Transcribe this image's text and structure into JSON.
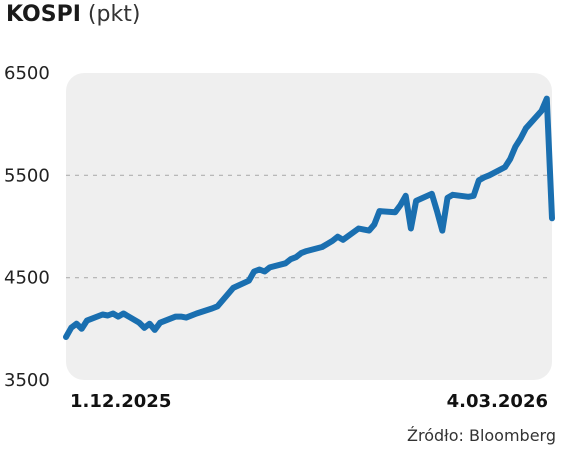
{
  "header": {
    "title": "KOSPI",
    "unit": "(pkt)"
  },
  "source": "Źródło: Bloomberg",
  "colors": {
    "line": "#1a6fb0",
    "plot_background": "#efefef",
    "gridline": "#b0b0b0"
  },
  "chart_data": {
    "type": "line",
    "title": "KOSPI",
    "ylabel": "(pkt)",
    "xlabel": "",
    "ylim": [
      3500,
      6500
    ],
    "yticks": [
      3500,
      4500,
      5500,
      6500
    ],
    "grid": true,
    "x_start_label": "1.12.2025",
    "x_end_label": "4.03.2026",
    "x": [
      "2025-12-01",
      "2025-12-02",
      "2025-12-03",
      "2025-12-04",
      "2025-12-05",
      "2025-12-08",
      "2025-12-09",
      "2025-12-10",
      "2025-12-11",
      "2025-12-12",
      "2025-12-15",
      "2025-12-16",
      "2025-12-17",
      "2025-12-18",
      "2025-12-19",
      "2025-12-22",
      "2025-12-23",
      "2025-12-24",
      "2025-12-26",
      "2025-12-29",
      "2025-12-30",
      "2026-01-02",
      "2026-01-05",
      "2026-01-06",
      "2026-01-07",
      "2026-01-08",
      "2026-01-09",
      "2026-01-12",
      "2026-01-13",
      "2026-01-14",
      "2026-01-15",
      "2026-01-16",
      "2026-01-19",
      "2026-01-20",
      "2026-01-21",
      "2026-01-22",
      "2026-01-23",
      "2026-01-26",
      "2026-01-27",
      "2026-01-28",
      "2026-01-29",
      "2026-01-30",
      "2026-02-02",
      "2026-02-03",
      "2026-02-04",
      "2026-02-05",
      "2026-02-06",
      "2026-02-09",
      "2026-02-10",
      "2026-02-11",
      "2026-02-12",
      "2026-02-13",
      "2026-02-16",
      "2026-02-17",
      "2026-02-18",
      "2026-02-19",
      "2026-02-20",
      "2026-02-23",
      "2026-02-24",
      "2026-02-25",
      "2026-02-26",
      "2026-02-27",
      "2026-03-02",
      "2026-03-03",
      "2026-03-04"
    ],
    "series": [
      {
        "values": [
          3920,
          4010,
          4050,
          4000,
          4080,
          4140,
          4130,
          4150,
          4120,
          4150,
          4060,
          4010,
          4050,
          3990,
          4060,
          4120,
          4120,
          4110,
          4150,
          4200,
          4220,
          4400,
          4470,
          4560,
          4580,
          4560,
          4600,
          4640,
          4680,
          4700,
          4740,
          4760,
          4800,
          4830,
          4860,
          4900,
          4870,
          4980,
          4970,
          4960,
          5020,
          5150,
          5140,
          5210,
          5300,
          4980,
          5250,
          5320,
          5150,
          4960,
          5280,
          5310,
          5290,
          5300,
          5450,
          5480,
          5500,
          5580,
          5660,
          5780,
          5860,
          5960,
          6130,
          6250,
          5080
        ]
      }
    ]
  }
}
